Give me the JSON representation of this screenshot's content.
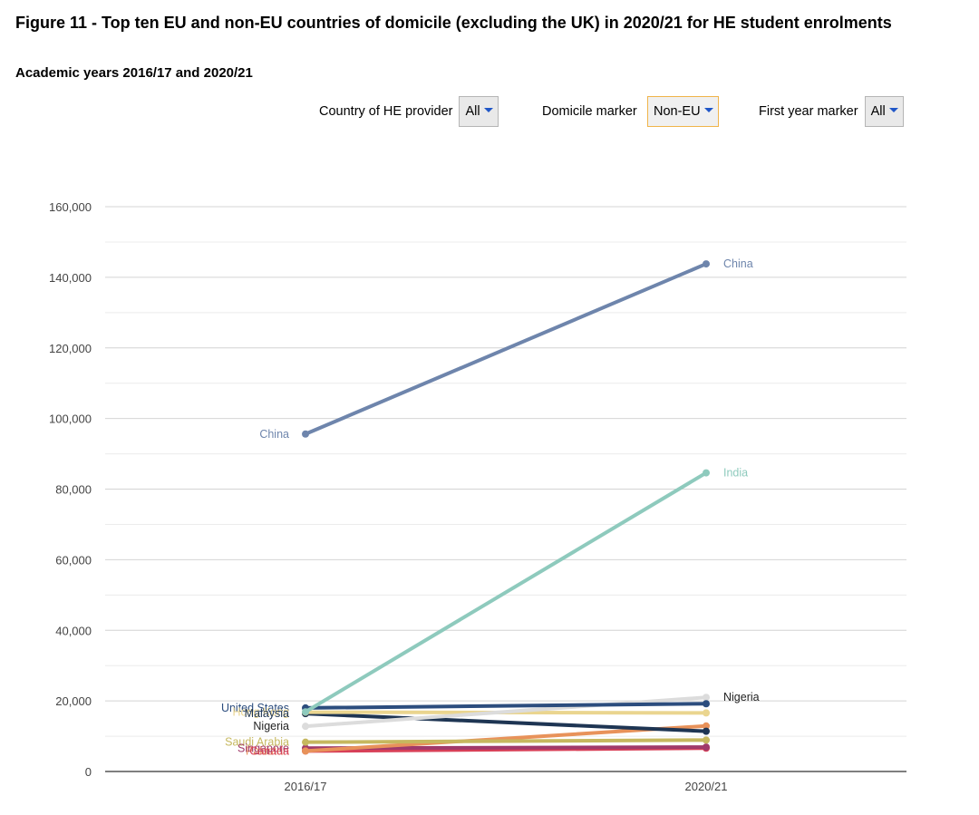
{
  "title": "Figure 11 - Top ten EU and non-EU countries of domicile (excluding the UK) in 2020/21 for HE student enrolments",
  "subtitle": "Academic years 2016/17 and 2020/21",
  "filters": {
    "provider": {
      "label": "Country of HE provider",
      "value": "All"
    },
    "domicile": {
      "label": "Domicile marker",
      "value": "Non-EU"
    },
    "first_year": {
      "label": "First year marker",
      "value": "All"
    }
  },
  "chart_data": {
    "type": "line",
    "title": "Figure 11 - Top ten EU and non-EU countries of domicile (excluding the UK) in 2020/21 for HE student enrolments",
    "xlabel": "",
    "ylabel": "",
    "x": [
      "2016/17",
      "2020/21"
    ],
    "ylim": [
      0,
      160000
    ],
    "yticks": [
      0,
      20000,
      40000,
      60000,
      80000,
      100000,
      120000,
      140000,
      160000
    ],
    "ytick_labels": [
      "0",
      "20,000",
      "40,000",
      "60,000",
      "80,000",
      "100,000",
      "120,000",
      "140,000",
      "160,000"
    ],
    "grid": true,
    "series": [
      {
        "name": "China",
        "values": [
          95600,
          143800
        ],
        "color": "#6e85ac",
        "label_start": "China",
        "label_end": "China"
      },
      {
        "name": "India",
        "values": [
          16900,
          84600
        ],
        "color": "#8ecabd",
        "label_start": "",
        "label_end": "India"
      },
      {
        "name": "United States",
        "values": [
          18000,
          19200
        ],
        "color": "#2c4d7e",
        "label_start": "United States",
        "label_end": ""
      },
      {
        "name": "Nigeria",
        "values": [
          12800,
          21000
        ],
        "color": "#dcdcdc",
        "label_start": "Nigeria",
        "label_end": "Nigeria"
      },
      {
        "name": "Hong Kong",
        "values": [
          16800,
          16600
        ],
        "color": "#ead58f",
        "label_start": "Hong Kong",
        "label_end": ""
      },
      {
        "name": "Malaysia",
        "values": [
          16400,
          11400
        ],
        "color": "#1e3553",
        "label_start": "Malaysia",
        "label_end": ""
      },
      {
        "name": "Saudi Arabia",
        "values": [
          8300,
          8900
        ],
        "color": "#c6b85f",
        "label_start": "Saudi Arabia",
        "label_end": ""
      },
      {
        "name": "Pakistan",
        "values": [
          5800,
          12900
        ],
        "color": "#e8925a",
        "label_start": "Pakistan",
        "label_end": ""
      },
      {
        "name": "Singapore",
        "values": [
          6600,
          6900
        ],
        "color": "#a03a6a",
        "label_start": "Singapore",
        "label_end": ""
      },
      {
        "name": "Canada",
        "values": [
          5800,
          6600
        ],
        "color": "#d84058",
        "label_start": "Canada",
        "label_end": ""
      }
    ]
  }
}
